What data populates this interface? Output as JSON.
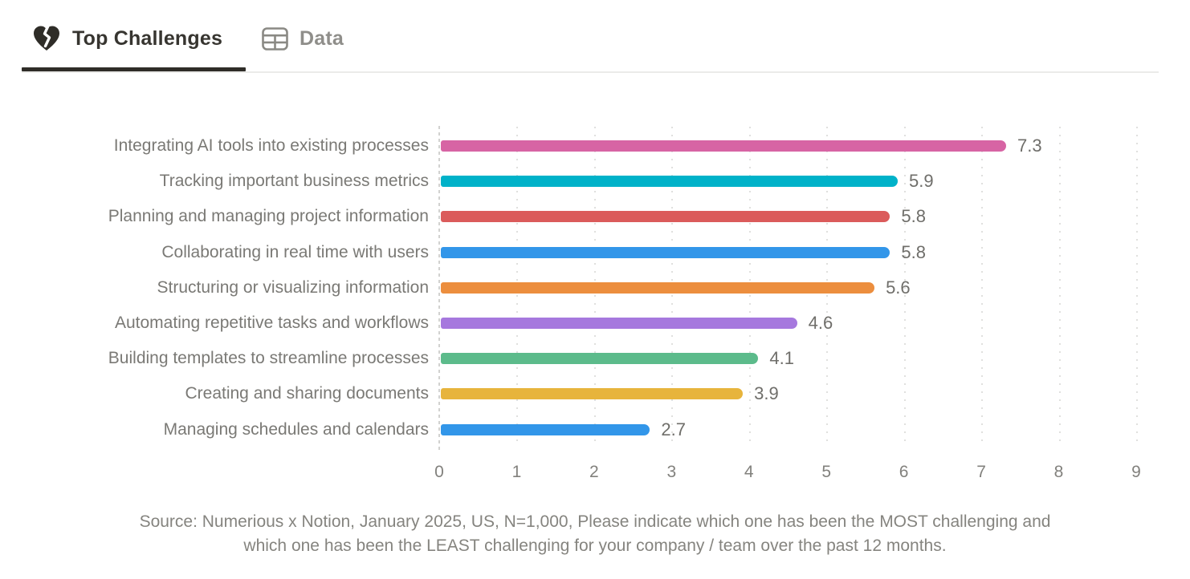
{
  "tabs": [
    {
      "label": "Top Challenges",
      "icon": "broken-heart",
      "active": true
    },
    {
      "label": "Data",
      "icon": "table",
      "active": false
    }
  ],
  "chart_data": {
    "type": "bar",
    "orientation": "horizontal",
    "title": "",
    "categories": [
      "Integrating AI tools into existing processes",
      "Tracking important business metrics",
      "Planning and managing project information",
      "Collaborating in real time with users",
      "Structuring or visualizing information",
      "Automating repetitive tasks and workflows",
      "Building templates to streamline processes",
      "Creating and sharing documents",
      "Managing schedules and calendars"
    ],
    "values": [
      7.3,
      5.9,
      5.8,
      5.8,
      5.6,
      4.6,
      4.1,
      3.9,
      2.7
    ],
    "value_labels": [
      "7.3",
      "5.9",
      "5.8",
      "5.8",
      "5.6",
      "4.6",
      "4.1",
      "3.9",
      "2.7"
    ],
    "bar_colors": [
      "#D764A4",
      "#00B2C9",
      "#DB5B5B",
      "#3296E9",
      "#EC8E3E",
      "#A678DE",
      "#5CBB8B",
      "#E7B43C",
      "#3296E9"
    ],
    "x_ticks": [
      "0",
      "1",
      "2",
      "3",
      "4",
      "5",
      "6",
      "7",
      "8",
      "9"
    ],
    "xlim": [
      0,
      9
    ],
    "grid": "vertical-dotted",
    "legend": "none",
    "xlabel": "",
    "ylabel": ""
  },
  "source": {
    "line1": "Source: Numerious x Notion, January 2025, US, N=1,000, Please indicate which one has been the MOST challenging and",
    "line2": "which one has been the LEAST challenging for your company /  team over the past 12 months."
  },
  "colors": {
    "active_tab_text": "#373530",
    "inactive_tab_text": "#8F8E8A",
    "tab_underline": "#2F2D28",
    "label_text": "#7A7975",
    "source_text": "#85847F"
  }
}
